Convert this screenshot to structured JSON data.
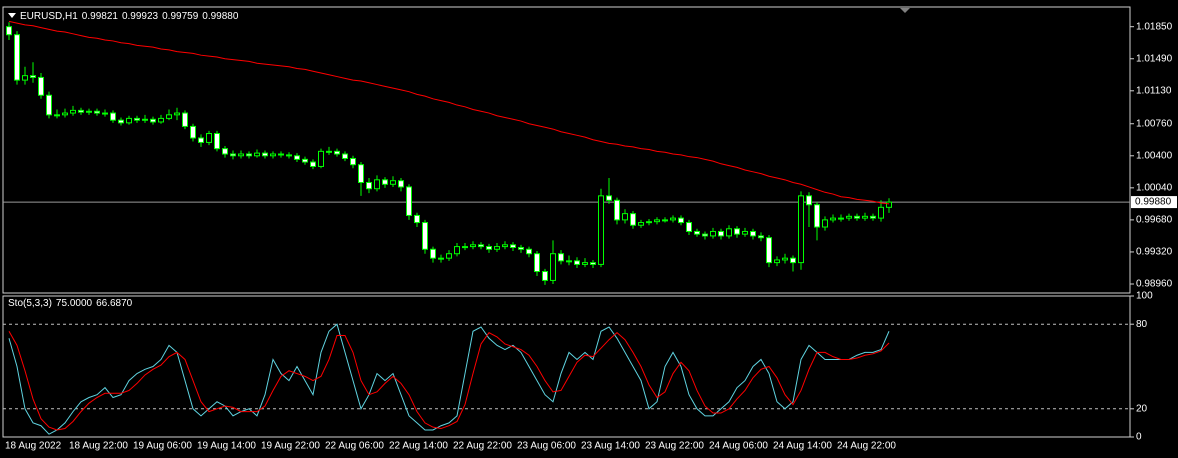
{
  "chart_data": [
    {
      "type": "candlestick",
      "title": "EURUSD,H1",
      "last_bar_labels": [
        "0.99821",
        "0.99923",
        "0.99759",
        "0.99880"
      ],
      "categories": [
        "18 Aug 2022",
        null,
        null,
        null,
        null,
        null,
        null,
        null,
        "18 Aug 22:00",
        null,
        null,
        null,
        null,
        null,
        null,
        null,
        "19 Aug 06:00",
        null,
        null,
        null,
        null,
        null,
        null,
        null,
        "19 Aug 14:00",
        null,
        null,
        null,
        null,
        null,
        null,
        null,
        "19 Aug 22:00",
        null,
        null,
        null,
        null,
        null,
        null,
        null,
        "22 Aug 06:00",
        null,
        null,
        null,
        null,
        null,
        null,
        null,
        "22 Aug 14:00",
        null,
        null,
        null,
        null,
        null,
        null,
        null,
        "22 Aug 22:00",
        null,
        null,
        null,
        null,
        null,
        null,
        null,
        "23 Aug 06:00",
        null,
        null,
        null,
        null,
        null,
        null,
        null,
        "23 Aug 14:00",
        null,
        null,
        null,
        null,
        null,
        null,
        null,
        "23 Aug 22:00",
        null,
        null,
        null,
        null,
        null,
        null,
        null,
        "24 Aug 06:00",
        null,
        null,
        null,
        null,
        null,
        null,
        null,
        "24 Aug 14:00",
        null,
        null,
        null,
        null,
        null,
        null,
        null,
        "24 Aug 22:00",
        null,
        null,
        null,
        null,
        null,
        null
      ],
      "open": [
        1.0185,
        1.0176,
        1.0125,
        1.013,
        1.0128,
        1.0108,
        1.0086,
        1.0086,
        1.0088,
        1.0091,
        1.0089,
        1.009,
        1.0088,
        1.0088,
        1.008,
        1.0077,
        1.0082,
        1.008,
        1.0081,
        1.0078,
        1.0082,
        1.0086,
        1.0088,
        1.0073,
        1.006,
        1.0055,
        1.0065,
        1.0048,
        1.0042,
        1.004,
        1.0042,
        1.004,
        1.0043,
        1.004,
        1.0042,
        1.0041,
        1.004,
        1.0036,
        1.0033,
        1.0028,
        1.0045,
        1.0045,
        1.0042,
        1.0037,
        1.003,
        1.001,
        1.0003,
        1.0013,
        1.0008,
        1.0012,
        1.0005,
        0.9973,
        0.9965,
        0.9935,
        0.9925,
        0.9925,
        0.993,
        0.9938,
        0.9938,
        0.994,
        0.9938,
        0.9935,
        0.9938,
        0.994,
        0.9937,
        0.9935,
        0.993,
        0.991,
        0.99,
        0.993,
        0.9922,
        0.9922,
        0.9918,
        0.992,
        0.9918,
        0.9995,
        0.999,
        0.9968,
        0.9975,
        0.9962,
        0.9965,
        0.9966,
        0.9968,
        0.9968,
        0.997,
        0.9965,
        0.9955,
        0.9952,
        0.995,
        0.9955,
        0.995,
        0.9958,
        0.9952,
        0.9955,
        0.995,
        0.9948,
        0.992,
        0.9923,
        0.9925,
        0.992,
        0.9995,
        0.9985,
        0.996,
        0.9968,
        0.997,
        0.997,
        0.9972,
        0.997,
        0.9972,
        0.997,
        0.99821
      ],
      "high": [
        1.019,
        1.018,
        1.014,
        1.0145,
        1.0133,
        1.0112,
        1.0092,
        1.0093,
        1.0096,
        1.0094,
        1.0093,
        1.0093,
        1.0092,
        1.0091,
        1.0083,
        1.0085,
        1.0085,
        1.0086,
        1.0084,
        1.0086,
        1.0092,
        1.0094,
        1.0091,
        1.0076,
        1.0064,
        1.0068,
        1.0068,
        1.0051,
        1.0046,
        1.0046,
        1.0045,
        1.0047,
        1.0046,
        1.0045,
        1.0045,
        1.0044,
        1.0043,
        1.0039,
        1.0036,
        1.0048,
        1.005,
        1.0048,
        1.0045,
        1.004,
        1.0033,
        1.0015,
        1.0018,
        1.0016,
        1.0017,
        1.0015,
        1.0008,
        0.9976,
        0.9968,
        0.9938,
        0.9929,
        0.9934,
        0.9942,
        0.9942,
        0.9944,
        0.9943,
        0.9941,
        0.9942,
        0.9944,
        0.9943,
        0.994,
        0.9938,
        0.9933,
        0.9913,
        0.9945,
        0.9934,
        0.9928,
        0.9926,
        0.9925,
        0.9923,
        1.0003,
        1.0015,
        0.9993,
        0.998,
        0.9978,
        0.9968,
        0.9969,
        0.9971,
        0.9971,
        0.9973,
        0.9973,
        0.9968,
        0.9958,
        0.9955,
        0.9959,
        0.9958,
        0.9962,
        0.9961,
        0.9959,
        0.9958,
        0.9954,
        0.9951,
        0.9927,
        0.993,
        0.9928,
        1.0,
        0.9999,
        0.9988,
        0.9972,
        0.9974,
        0.9974,
        0.9975,
        0.9975,
        0.9976,
        0.9975,
        0.999,
        0.99923
      ],
      "low": [
        1.017,
        1.012,
        1.012,
        1.0122,
        1.0104,
        1.0082,
        1.0082,
        1.0083,
        1.0085,
        1.0086,
        1.0086,
        1.0085,
        1.0084,
        1.0077,
        1.0074,
        1.0075,
        1.0077,
        1.0077,
        1.0075,
        1.0076,
        1.008,
        1.008,
        1.007,
        1.0056,
        1.005,
        1.0052,
        1.0045,
        1.0038,
        1.0036,
        1.0037,
        1.0037,
        1.0038,
        1.0037,
        1.0037,
        1.0038,
        1.0037,
        1.0033,
        1.003,
        1.0025,
        1.0026,
        1.0041,
        1.0039,
        1.0034,
        1.0026,
        0.9995,
        0.9998,
        1.0,
        1.0004,
        1.0005,
        1.0,
        0.9968,
        0.996,
        0.993,
        0.992,
        0.992,
        0.9922,
        0.9927,
        0.9934,
        0.9935,
        0.9935,
        0.9931,
        0.9932,
        0.9935,
        0.9933,
        0.9931,
        0.9926,
        0.9905,
        0.9895,
        0.9896,
        0.9918,
        0.9917,
        0.9914,
        0.9915,
        0.9914,
        0.9915,
        0.9986,
        0.9963,
        0.9964,
        0.9958,
        0.9959,
        0.9962,
        0.9963,
        0.9965,
        0.9965,
        0.9962,
        0.9951,
        0.9949,
        0.9946,
        0.9947,
        0.9946,
        0.9947,
        0.9948,
        0.9949,
        0.9946,
        0.9944,
        0.9915,
        0.9916,
        0.9919,
        0.991,
        0.9912,
        0.996,
        0.9945,
        0.9956,
        0.9965,
        0.9966,
        0.9967,
        0.9967,
        0.9967,
        0.9967,
        0.9966,
        0.99759
      ],
      "close": [
        1.0176,
        1.0125,
        1.013,
        1.0128,
        1.0108,
        1.0086,
        1.0086,
        1.0088,
        1.0091,
        1.0089,
        1.009,
        1.0088,
        1.0088,
        1.008,
        1.0077,
        1.0082,
        1.008,
        1.0081,
        1.0078,
        1.0082,
        1.0086,
        1.0088,
        1.0073,
        1.006,
        1.0055,
        1.0065,
        1.0048,
        1.0042,
        1.004,
        1.0042,
        1.004,
        1.0043,
        1.004,
        1.0042,
        1.0041,
        1.004,
        1.0036,
        1.0033,
        1.0028,
        1.0045,
        1.0045,
        1.0042,
        1.0037,
        1.003,
        1.001,
        1.0003,
        1.0013,
        1.0008,
        1.0012,
        1.0005,
        0.9973,
        0.9965,
        0.9935,
        0.9925,
        0.9925,
        0.993,
        0.9938,
        0.9938,
        0.994,
        0.9938,
        0.9935,
        0.9938,
        0.994,
        0.9937,
        0.9935,
        0.993,
        0.991,
        0.99,
        0.993,
        0.9922,
        0.9922,
        0.9918,
        0.992,
        0.9918,
        0.9995,
        0.999,
        0.9968,
        0.9975,
        0.9962,
        0.9965,
        0.9966,
        0.9968,
        0.9968,
        0.997,
        0.9965,
        0.9955,
        0.9952,
        0.995,
        0.9955,
        0.995,
        0.9958,
        0.9952,
        0.9955,
        0.995,
        0.9948,
        0.992,
        0.9923,
        0.9925,
        0.992,
        0.9995,
        0.9985,
        0.996,
        0.9968,
        0.997,
        0.997,
        0.9972,
        0.997,
        0.9972,
        0.997,
        0.99821,
        0.9988
      ],
      "color": "#00ff00",
      "up_fill": "#000000",
      "down_fill": "#ffffff",
      "series": [
        {
          "color": "#ff0000",
          "values": [
            1.0191,
            1.0189,
            1.0187,
            1.0186,
            1.0184,
            1.0182,
            1.018,
            1.0179,
            1.0177,
            1.0175,
            1.0173,
            1.0172,
            1.017,
            1.0169,
            1.0167,
            1.0166,
            1.0164,
            1.0163,
            1.0162,
            1.016,
            1.0159,
            1.0157,
            1.0156,
            1.0155,
            1.0153,
            1.0152,
            1.0151,
            1.0149,
            1.0148,
            1.0147,
            1.0146,
            1.0144,
            1.0143,
            1.0142,
            1.0141,
            1.014,
            1.0138,
            1.0137,
            1.0135,
            1.0133,
            1.0131,
            1.0129,
            1.0127,
            1.0125,
            1.0124,
            1.0122,
            1.012,
            1.0118,
            1.0116,
            1.0114,
            1.0112,
            1.0109,
            1.0107,
            1.0104,
            1.0102,
            1.01,
            1.0097,
            1.0095,
            1.0092,
            1.009,
            1.0088,
            1.0085,
            1.0083,
            1.0081,
            1.0079,
            1.0076,
            1.0074,
            1.0072,
            1.007,
            1.0067,
            1.0065,
            1.0063,
            1.0061,
            1.0058,
            1.0056,
            1.0054,
            1.0053,
            1.0051,
            1.005,
            1.0048,
            1.0047,
            1.0045,
            1.0044,
            1.0042,
            1.0041,
            1.0039,
            1.0038,
            1.0036,
            1.0034,
            1.0031,
            1.0029,
            1.0027,
            1.0024,
            1.0022,
            1.002,
            1.0017,
            1.0015,
            1.0013,
            1.001,
            1.0008,
            1.0005,
            1.0002,
            0.9999,
            0.9997,
            0.9994,
            0.9993,
            0.9991,
            0.999,
            0.9989,
            0.9987,
            0.9986
          ]
        }
      ],
      "last_price": {
        "value": 0.9988,
        "label": "0.99880"
      },
      "ylim": [
        0.9887,
        1.0206
      ],
      "yticks": [
        {
          "value": 1.0185,
          "label": "1.01850"
        },
        {
          "value": 1.0149,
          "label": "1.01490"
        },
        {
          "value": 1.0113,
          "label": "1.01130"
        },
        {
          "value": 1.0076,
          "label": "1.00760"
        },
        {
          "value": 1.004,
          "label": "1.00400"
        },
        {
          "value": 1.0004,
          "label": "1.00040"
        },
        {
          "value": 0.9968,
          "label": "0.99680"
        },
        {
          "value": 0.9932,
          "label": "0.99320"
        },
        {
          "value": 0.9896,
          "label": "0.98960"
        }
      ]
    },
    {
      "type": "line",
      "title": "Sto(5,3,3)",
      "series": [
        {
          "color": "#5fd3e0",
          "last_label": "75.0000",
          "values": [
            70,
            50,
            20,
            10,
            8,
            2,
            5,
            10,
            18,
            25,
            28,
            30,
            35,
            28,
            30,
            40,
            45,
            48,
            50,
            55,
            65,
            60,
            40,
            20,
            15,
            20,
            25,
            22,
            15,
            18,
            20,
            15,
            30,
            55,
            45,
            40,
            50,
            40,
            30,
            60,
            75,
            80,
            60,
            40,
            20,
            30,
            45,
            40,
            45,
            30,
            15,
            10,
            5,
            5,
            8,
            10,
            15,
            45,
            75,
            78,
            70,
            65,
            62,
            65,
            60,
            50,
            40,
            30,
            25,
            45,
            60,
            55,
            60,
            55,
            75,
            78,
            70,
            60,
            50,
            40,
            20,
            25,
            50,
            60,
            50,
            30,
            20,
            15,
            15,
            20,
            25,
            35,
            40,
            50,
            55,
            45,
            25,
            20,
            25,
            55,
            65,
            60,
            55,
            55,
            55,
            55,
            58,
            60,
            60,
            62,
            75
          ]
        },
        {
          "color": "#ff0000",
          "last_label": "66.6870",
          "values": [
            75,
            65,
            47,
            27,
            13,
            7,
            5,
            6,
            11,
            18,
            24,
            28,
            31,
            31,
            31,
            33,
            38,
            44,
            48,
            51,
            57,
            60,
            55,
            40,
            25,
            18,
            20,
            22,
            21,
            18,
            18,
            18,
            22,
            33,
            43,
            47,
            45,
            43,
            40,
            43,
            55,
            72,
            72,
            60,
            40,
            30,
            32,
            38,
            43,
            38,
            30,
            18,
            10,
            7,
            6,
            8,
            11,
            23,
            45,
            66,
            74,
            71,
            66,
            64,
            62,
            58,
            50,
            40,
            32,
            33,
            43,
            53,
            58,
            57,
            63,
            69,
            74,
            69,
            60,
            50,
            37,
            28,
            32,
            45,
            53,
            47,
            33,
            22,
            17,
            17,
            20,
            27,
            33,
            42,
            48,
            50,
            42,
            30,
            23,
            33,
            48,
            60,
            60,
            57,
            55,
            55,
            56,
            58,
            59,
            61,
            66.687
          ]
        }
      ],
      "ylim": [
        0,
        100
      ],
      "yticks": [
        100,
        80,
        20,
        0
      ],
      "levels": [
        80,
        20
      ]
    }
  ]
}
